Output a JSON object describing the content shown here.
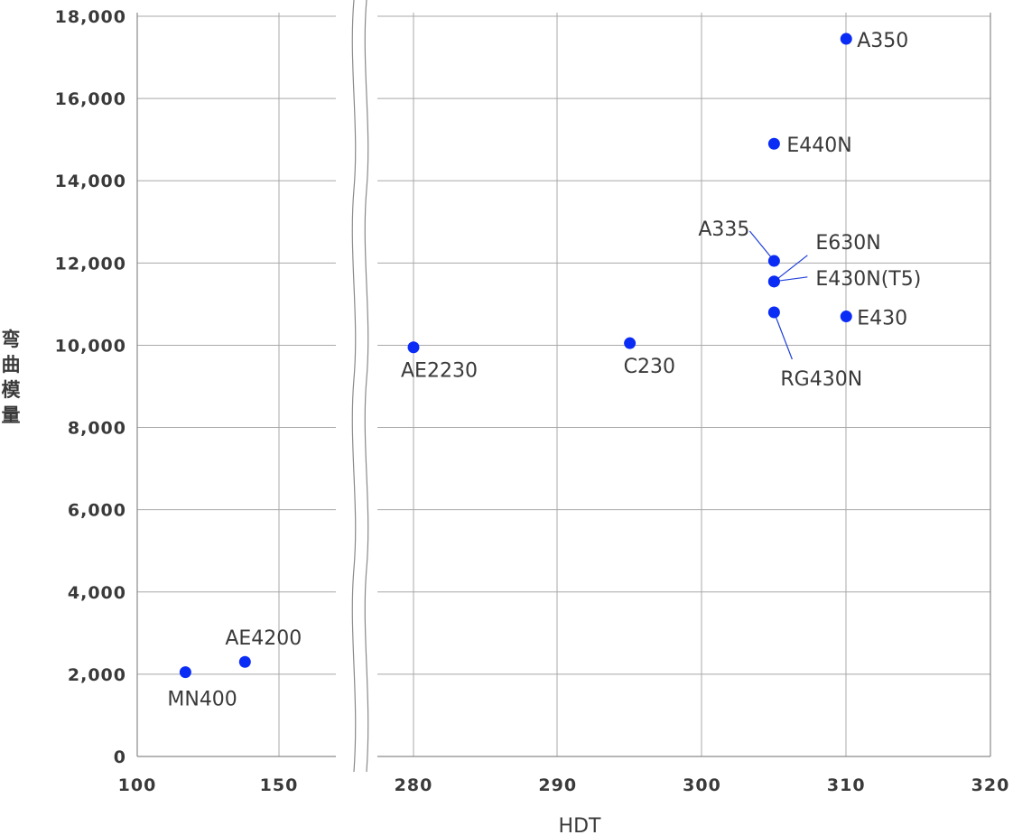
{
  "chart_data": {
    "type": "scatter",
    "xlabel": "HDT",
    "ylabel": "弯曲模量",
    "broken_x_axis": true,
    "x_segments": [
      {
        "range": [
          100,
          170
        ],
        "ticks": [
          100,
          150
        ]
      },
      {
        "range": [
          272,
          320
        ],
        "ticks": [
          280,
          290,
          300,
          310,
          320
        ]
      }
    ],
    "ylim": [
      0,
      18000
    ],
    "y_ticks": [
      0,
      2000,
      4000,
      6000,
      8000,
      10000,
      12000,
      14000,
      16000,
      18000
    ],
    "y_tick_labels": [
      "0",
      "2,000",
      "4,000",
      "6,000",
      "8,000",
      "10,000",
      "12,000",
      "14,000",
      "16,000",
      "18,000"
    ],
    "grid": true,
    "point_color": "#0a2cf5",
    "points": [
      {
        "label": "MN400",
        "x": 117,
        "y": 2050
      },
      {
        "label": "AE4200",
        "x": 138,
        "y": 2300
      },
      {
        "label": "AE2230",
        "x": 280,
        "y": 9950
      },
      {
        "label": "C230",
        "x": 295,
        "y": 10050
      },
      {
        "label": "A350",
        "x": 310,
        "y": 17450
      },
      {
        "label": "E440N",
        "x": 305,
        "y": 14900
      },
      {
        "label": "A335",
        "x": 305,
        "y": 12050
      },
      {
        "label": "E630N",
        "x": 305,
        "y": 11550
      },
      {
        "label": "E430N(T5)",
        "x": 305,
        "y": 11550
      },
      {
        "label": "E430",
        "x": 310,
        "y": 10700
      },
      {
        "label": "RG430N",
        "x": 305,
        "y": 10800
      }
    ]
  }
}
